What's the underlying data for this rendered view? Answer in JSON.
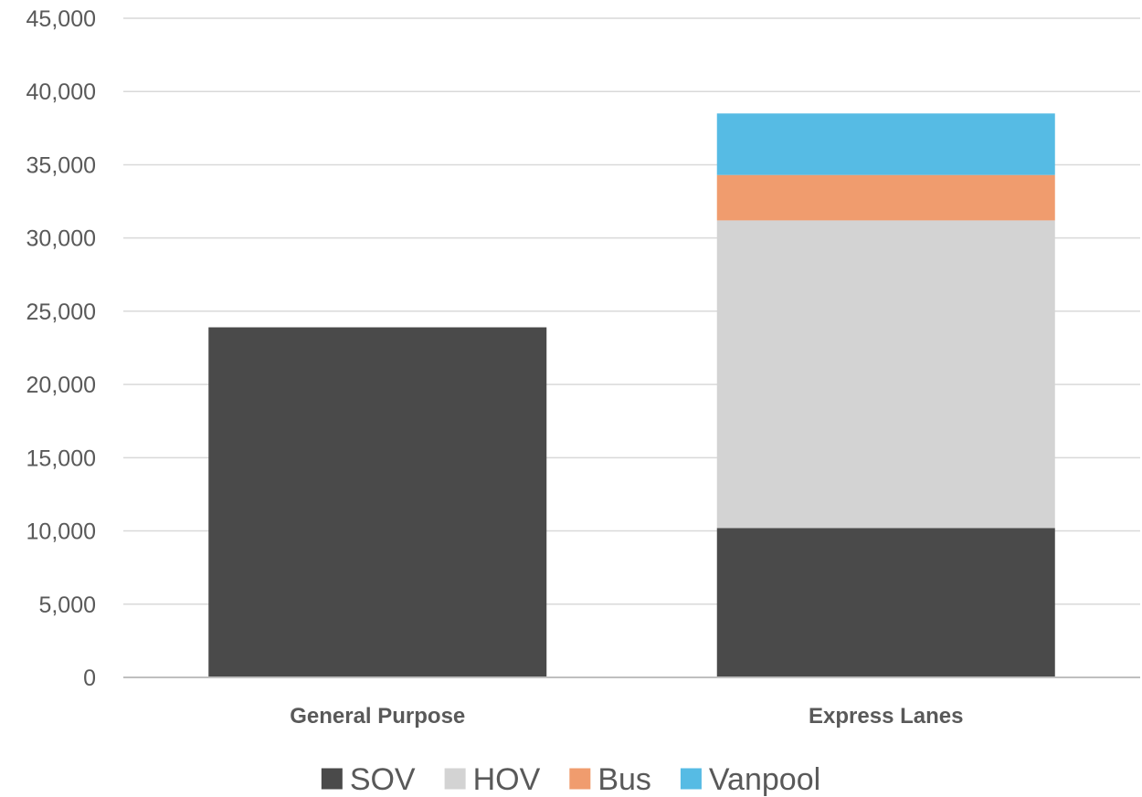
{
  "chart_data": {
    "type": "bar",
    "stacked": true,
    "categories": [
      "General Purpose",
      "Express Lanes"
    ],
    "series": [
      {
        "name": "SOV",
        "color": "#4a4a4a",
        "values": [
          23900,
          10200
        ]
      },
      {
        "name": "HOV",
        "color": "#d3d3d3",
        "values": [
          0,
          21000
        ]
      },
      {
        "name": "Bus",
        "color": "#f09c6e",
        "values": [
          0,
          3100
        ]
      },
      {
        "name": "Vanpool",
        "color": "#56bbe4",
        "values": [
          0,
          4200
        ]
      }
    ],
    "ylim": [
      0,
      45000
    ],
    "yticks": [
      "0",
      "5,000",
      "10,000",
      "15,000",
      "20,000",
      "25,000",
      "30,000",
      "35,000",
      "40,000",
      "45,000"
    ],
    "ytick_values": [
      0,
      5000,
      10000,
      15000,
      20000,
      25000,
      30000,
      35000,
      40000,
      45000
    ],
    "grid": true,
    "legend_position": "bottom",
    "title": "",
    "xlabel": "",
    "ylabel": ""
  }
}
